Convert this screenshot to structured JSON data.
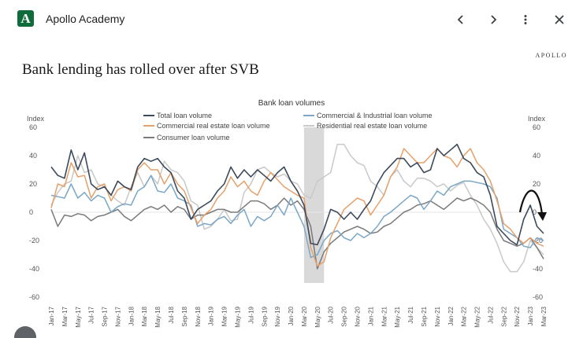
{
  "app": {
    "title": "Apollo Academy",
    "logo_letter": "A"
  },
  "article": {
    "brand": "APOLLO",
    "headline": "Bank lending has rolled over after SVB"
  },
  "colors": {
    "total": "#3d4a5c",
    "cni": "#7aa7c7",
    "cre": "#e6a06a",
    "residential": "#c9c9c9",
    "consumer": "#7a7a7a",
    "shade": "#d9d9d9",
    "logo": "#0f6b3a"
  },
  "chart_data": {
    "type": "line",
    "title": "Bank loan volumes",
    "ylabel_left": "Index",
    "ylabel_right": "Index",
    "ylim": [
      -60,
      60
    ],
    "yticks": [
      60,
      40,
      20,
      0,
      -20,
      -40,
      -60
    ],
    "x_tick_labels": [
      "Jan-17",
      "Mar-17",
      "May-17",
      "Jul-17",
      "Sep-17",
      "Nov-17",
      "Jan-18",
      "Mar-18",
      "May-18",
      "Jul-18",
      "Sep-18",
      "Nov-18",
      "Jan-19",
      "Mar-19",
      "May-19",
      "Jul-19",
      "Sep-19",
      "Nov-19",
      "Jan-20",
      "Mar-20",
      "May-20",
      "Jul-20",
      "Sep-20",
      "Nov-20",
      "Jan-21",
      "Mar-21",
      "May-21",
      "Jul-21",
      "Sep-21",
      "Nov-21",
      "Jan-22",
      "Mar-22",
      "May-22",
      "Jul-22",
      "Sep-22",
      "Nov-22",
      "Jan-23",
      "Mar-23"
    ],
    "shaded_region": {
      "from_month": 38,
      "to_month": 41
    },
    "legend": [
      {
        "key": "total",
        "label": "Total loan volume"
      },
      {
        "key": "cni",
        "label": "Commercial & Industrial loan volume"
      },
      {
        "key": "cre",
        "label": "Commercial real estate loan volume"
      },
      {
        "key": "residential",
        "label": "Residential real estate loan volume"
      },
      {
        "key": "consumer",
        "label": "Consumer loan volume"
      }
    ],
    "series": [
      {
        "key": "residential",
        "name": "Residential real estate loan volume",
        "values": [
          5,
          14,
          20,
          22,
          40,
          28,
          30,
          20,
          18,
          12,
          8,
          5,
          18,
          28,
          18,
          26,
          20,
          36,
          30,
          28,
          22,
          8,
          5,
          -12,
          -10,
          -5,
          2,
          -6,
          -5,
          14,
          20,
          30,
          32,
          28,
          25,
          27,
          22,
          20,
          12,
          10,
          22,
          25,
          28,
          48,
          48,
          40,
          35,
          33,
          22,
          18,
          12,
          25,
          30,
          22,
          18,
          24,
          24,
          22,
          18,
          20,
          15,
          19,
          21,
          12,
          5,
          -5,
          -12,
          -22,
          -35,
          -42,
          -42,
          -35,
          -20,
          -25,
          -30
        ]
      },
      {
        "key": "consumer",
        "name": "Consumer loan volume",
        "values": [
          2,
          -10,
          -2,
          -3,
          -1,
          -2,
          -6,
          -3,
          -2,
          0,
          2,
          -3,
          -6,
          -2,
          2,
          4,
          2,
          5,
          0,
          4,
          2,
          -5,
          -2,
          -2,
          0,
          2,
          2,
          0,
          0,
          4,
          8,
          8,
          6,
          2,
          5,
          10,
          5,
          8,
          2,
          -10,
          -40,
          -28,
          -22,
          -18,
          -14,
          -12,
          -10,
          -12,
          -15,
          -14,
          -10,
          -8,
          -4,
          0,
          2,
          5,
          6,
          8,
          5,
          2,
          6,
          10,
          8,
          10,
          8,
          5,
          0,
          -12,
          -20,
          -22,
          -24,
          -22,
          -18,
          -25,
          -33
        ]
      },
      {
        "key": "cni",
        "name": "Commercial & Industrial loan volume",
        "values": [
          12,
          11,
          10,
          20,
          10,
          14,
          8,
          12,
          10,
          0,
          4,
          6,
          5,
          15,
          18,
          26,
          15,
          14,
          20,
          10,
          8,
          5,
          -10,
          -8,
          -9,
          -5,
          -3,
          -8,
          -2,
          2,
          -10,
          -3,
          -6,
          -3,
          5,
          -2,
          10,
          0,
          -10,
          -32,
          -30,
          -20,
          -15,
          -13,
          -18,
          -20,
          -15,
          -18,
          -15,
          -10,
          -3,
          0,
          4,
          8,
          12,
          10,
          2,
          8,
          15,
          12,
          18,
          20,
          22,
          22,
          21,
          20,
          18,
          10,
          -12,
          -15,
          -18,
          -24,
          -25,
          -18,
          -20
        ]
      },
      {
        "key": "cre",
        "name": "Commercial real estate loan volume",
        "values": [
          3,
          20,
          18,
          35,
          25,
          26,
          10,
          18,
          20,
          8,
          16,
          18,
          15,
          30,
          35,
          30,
          30,
          20,
          28,
          20,
          15,
          3,
          -8,
          -2,
          2,
          10,
          15,
          25,
          18,
          22,
          15,
          12,
          22,
          28,
          23,
          18,
          15,
          12,
          10,
          -25,
          -38,
          -35,
          -18,
          -8,
          2,
          6,
          10,
          8,
          -2,
          5,
          12,
          25,
          32,
          45,
          40,
          35,
          35,
          40,
          45,
          40,
          38,
          32,
          40,
          45,
          35,
          30,
          22,
          8,
          -8,
          -12,
          -18,
          -22,
          -18,
          -22,
          -24
        ]
      },
      {
        "key": "total",
        "name": "Total loan volume",
        "values": [
          32,
          26,
          24,
          44,
          30,
          42,
          20,
          16,
          18,
          12,
          22,
          18,
          16,
          32,
          38,
          36,
          38,
          32,
          28,
          15,
          10,
          -5,
          2,
          5,
          8,
          15,
          20,
          32,
          24,
          30,
          25,
          30,
          26,
          22,
          28,
          32,
          22,
          15,
          5,
          -22,
          -23,
          -12,
          2,
          0,
          -5,
          0,
          -5,
          2,
          8,
          20,
          28,
          33,
          38,
          38,
          32,
          35,
          28,
          30,
          45,
          40,
          44,
          48,
          38,
          35,
          28,
          25,
          12,
          -10,
          -15,
          -20,
          -23,
          -5,
          5,
          -10,
          -15
        ]
      }
    ]
  }
}
